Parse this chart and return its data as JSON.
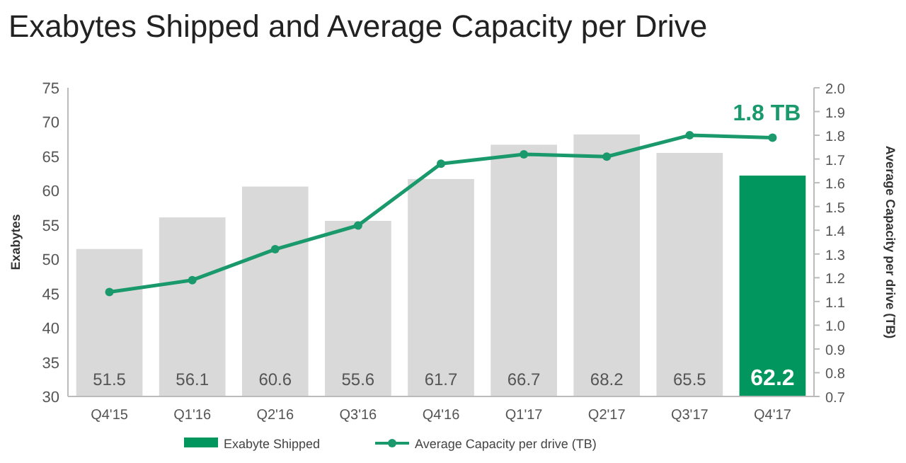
{
  "chart_data": {
    "type": "bar",
    "title": "Exabytes Shipped and Average Capacity per Drive",
    "categories": [
      "Q4'15",
      "Q1'16",
      "Q2'16",
      "Q3'16",
      "Q4'16",
      "Q1'17",
      "Q2'17",
      "Q3'17",
      "Q4'17"
    ],
    "series": [
      {
        "name": "Exabyte Shipped",
        "value_labels": [
          "51.5",
          "56.1",
          "60.6",
          "55.6",
          "61.7",
          "66.7",
          "68.2",
          "65.5",
          "62.2"
        ],
        "colors": [
          "#d9d9d9",
          "#d9d9d9",
          "#d9d9d9",
          "#d9d9d9",
          "#d9d9d9",
          "#d9d9d9",
          "#d9d9d9",
          "#d9d9d9",
          "#00965e"
        ],
        "color": "#d9d9d9",
        "values": [
          51.5,
          56.1,
          60.6,
          55.6,
          61.7,
          66.7,
          68.2,
          65.5,
          62.2
        ]
      },
      {
        "name": "Average Capacity per drive (TB)",
        "type": "line",
        "axis": "y2",
        "color": "#1a9a6c",
        "marker": "circle",
        "values": [
          1.14,
          1.19,
          1.32,
          1.42,
          1.68,
          1.72,
          1.71,
          1.8,
          1.79
        ]
      }
    ],
    "ylabel": "Exabytes",
    "y2label": "Average Capacity per drive (TB)",
    "ylim": [
      30,
      75
    ],
    "yticks": [
      30,
      35,
      40,
      45,
      50,
      55,
      60,
      65,
      70,
      75
    ],
    "y2lim": [
      0.7,
      2.0
    ],
    "y2ticks": [
      {
        "value": 0.7,
        "label": "0.7"
      },
      {
        "value": 0.8,
        "label": "0.8"
      },
      {
        "value": 0.9,
        "label": "0.9"
      },
      {
        "value": 1.0,
        "label": "1.0"
      },
      {
        "value": 1.1,
        "label": "1.1"
      },
      {
        "value": 1.2,
        "label": "1.2"
      },
      {
        "value": 1.3,
        "label": "1.3"
      },
      {
        "value": 1.4,
        "label": "1.4"
      },
      {
        "value": 1.5,
        "label": "1.5"
      },
      {
        "value": 1.6,
        "label": "1.6"
      },
      {
        "value": 1.7,
        "label": "1.7"
      },
      {
        "value": 1.8,
        "label": "1.8"
      },
      {
        "value": 1.9,
        "label": "1.9"
      },
      {
        "value": 2.0,
        "label": "2.0"
      }
    ],
    "annotations": [
      "1.8 TB"
    ],
    "grid": false,
    "legend": "bottom"
  }
}
